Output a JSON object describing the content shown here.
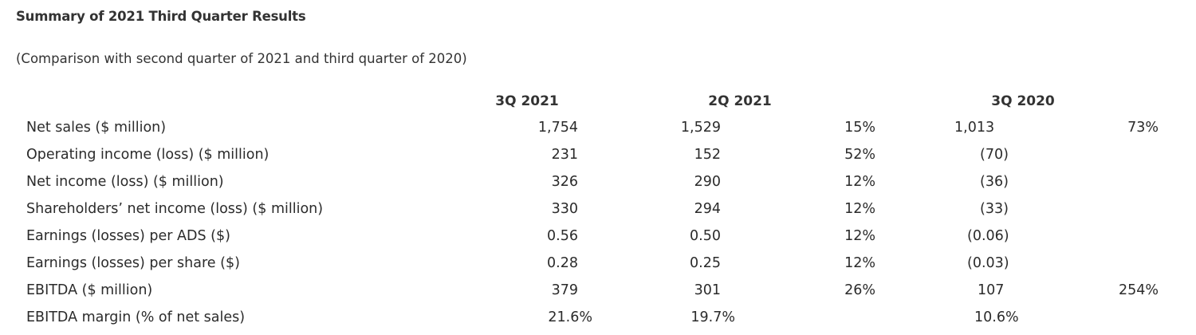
{
  "title": "Summary of 2021 Third Quarter Results",
  "subtitle": "(Comparison with second quarter of 2021 and third quarter of 2020)",
  "headers": [
    "3Q 2021",
    "2Q 2021",
    "3Q 2020"
  ],
  "rows": [
    {
      "label": "Net sales ($ million)",
      "q3_2021": "1,754",
      "q2_2021": "1,529",
      "qoq": "15%",
      "q3_2020": "1,013",
      "yoy": "73%"
    },
    {
      "label": "Operating income (loss) ($ million)",
      "q3_2021": "231",
      "q2_2021": "152",
      "qoq": "52%",
      "q3_2020": "(70)",
      "yoy": ""
    },
    {
      "label": "Net income (loss) ($ million)",
      "q3_2021": "326",
      "q2_2021": "290",
      "qoq": "12%",
      "q3_2020": "(36)",
      "yoy": ""
    },
    {
      "label": "Shareholders’ net income (loss) ($ million)",
      "q3_2021": "330",
      "q2_2021": "294",
      "qoq": "12%",
      "q3_2020": "(33)",
      "yoy": ""
    },
    {
      "label": "Earnings (losses) per ADS ($)",
      "q3_2021": "0.56",
      "q2_2021": "0.50",
      "qoq": "12%",
      "q3_2020": "(0.06)",
      "yoy": ""
    },
    {
      "label": "Earnings (losses) per share ($)",
      "q3_2021": "0.28",
      "q2_2021": "0.25",
      "qoq": "12%",
      "q3_2020": "(0.03)",
      "yoy": ""
    },
    {
      "label": "EBITDA ($ million)",
      "q3_2021": "379",
      "q2_2021": "301",
      "qoq": "26%",
      "q3_2020": "107",
      "yoy": "254%"
    },
    {
      "label": "EBITDA margin (% of net sales)",
      "q3_2021": "21.6%",
      "q2_2021": "19.7%",
      "qoq": "",
      "q3_2020": "10.6%",
      "yoy": ""
    }
  ]
}
